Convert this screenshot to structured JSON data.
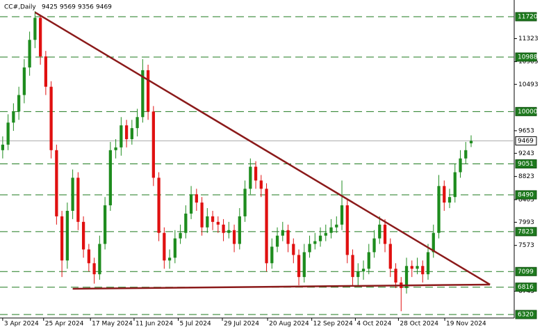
{
  "chart_data": {
    "type": "candlestick",
    "title": "CC#,Daily",
    "header_ohlc": [
      9425,
      9569,
      9356,
      9469
    ],
    "open": [
      9300,
      9400,
      9800,
      10000,
      10300,
      10800,
      11300,
      11700,
      11000,
      10450,
      9300,
      8100,
      7300,
      8200,
      8800,
      8000,
      7500,
      7250,
      7050,
      7600,
      8300,
      9300,
      9350,
      9750,
      9500,
      9700,
      9900,
      10750,
      10000,
      8800,
      7800,
      7300,
      7350,
      7700,
      7800,
      8150,
      8500,
      8350,
      7900,
      8100,
      8000,
      7950,
      7800,
      7850,
      7600,
      8100,
      8600,
      9000,
      8750,
      8600,
      7250,
      7550,
      7750,
      7850,
      7600,
      7400,
      7000,
      7450,
      7600,
      7650,
      7750,
      7800,
      7900,
      7950,
      8300,
      7400,
      7000,
      7100,
      7150,
      7450,
      7700,
      7950,
      7600,
      7150,
      6900,
      6800,
      7200,
      7150,
      7200,
      7050,
      7450,
      7800,
      8650,
      8350,
      8450,
      8900,
      9150,
      9425
    ],
    "high": [
      9550,
      9950,
      10150,
      10450,
      10950,
      11450,
      11820,
      11750,
      11100,
      10550,
      9400,
      8200,
      8350,
      8950,
      8900,
      8100,
      7600,
      7350,
      7750,
      8450,
      9450,
      9500,
      9900,
      9850,
      9850,
      10050,
      10950,
      10850,
      10100,
      8900,
      7900,
      7500,
      7850,
      7950,
      8300,
      8650,
      8600,
      8450,
      8250,
      8200,
      8100,
      8050,
      8000,
      7950,
      8250,
      8750,
      9150,
      9100,
      8850,
      8700,
      7700,
      7900,
      8000,
      7950,
      7700,
      7500,
      7600,
      7750,
      7800,
      7900,
      7950,
      8050,
      8100,
      8750,
      8400,
      7500,
      7250,
      7300,
      7600,
      7850,
      8100,
      8050,
      7700,
      7250,
      7000,
      7350,
      7300,
      7350,
      7300,
      7600,
      7950,
      8850,
      8750,
      8600,
      9050,
      9300,
      9450,
      9569
    ],
    "low": [
      9150,
      9300,
      9650,
      9850,
      10150,
      10650,
      11150,
      10850,
      10300,
      9150,
      7950,
      7000,
      7150,
      8050,
      7850,
      7350,
      7100,
      6880,
      6950,
      7500,
      8200,
      9150,
      9200,
      9350,
      9400,
      9550,
      9800,
      9850,
      8650,
      7650,
      7150,
      7150,
      7250,
      7600,
      7700,
      8050,
      8200,
      7750,
      7800,
      7850,
      7800,
      7650,
      7700,
      7450,
      7500,
      8000,
      8500,
      8600,
      8450,
      7100,
      7150,
      7450,
      7650,
      7450,
      7250,
      6850,
      6900,
      7350,
      7500,
      7550,
      7650,
      7700,
      7800,
      7850,
      7250,
      6830,
      6850,
      6950,
      7050,
      7350,
      7600,
      7450,
      7000,
      6800,
      6380,
      6700,
      7000,
      7050,
      6900,
      6950,
      7350,
      7700,
      8200,
      8250,
      8350,
      8800,
      9050,
      9356
    ],
    "close": [
      9400,
      9800,
      10000,
      10300,
      10800,
      11300,
      11700,
      11000,
      10450,
      9300,
      8100,
      7300,
      8200,
      8800,
      8000,
      7500,
      7250,
      7050,
      7600,
      8300,
      9300,
      9350,
      9750,
      9500,
      9700,
      9900,
      10750,
      10000,
      8800,
      7800,
      7300,
      7350,
      7700,
      7800,
      8150,
      8500,
      8350,
      7900,
      8100,
      8000,
      7950,
      7800,
      7850,
      7600,
      8100,
      8600,
      9000,
      8750,
      8600,
      7250,
      7550,
      7750,
      7850,
      7600,
      7400,
      7000,
      7450,
      7600,
      7650,
      7750,
      7800,
      7900,
      7950,
      8300,
      7400,
      7000,
      7100,
      7150,
      7450,
      7700,
      7950,
      7600,
      7150,
      6900,
      6800,
      7200,
      7150,
      7200,
      7050,
      7450,
      7800,
      8650,
      8350,
      8450,
      8900,
      9150,
      9300,
      9469
    ],
    "up_color": "#1e8c1e",
    "down_color": "#e01010",
    "xlim": [
      -0.5,
      95
    ],
    "xticks": [
      {
        "value": 0,
        "label": "3 Apr 2024"
      },
      {
        "value": 7.6,
        "label": "25 Apr 2024"
      },
      {
        "value": 16.3,
        "label": "17 May 2024"
      },
      {
        "value": 24.4,
        "label": "11 Jun 2024"
      },
      {
        "value": 32.6,
        "label": "5 Jul 2024"
      },
      {
        "value": 40.8,
        "label": "29 Jul 2024"
      },
      {
        "value": 49.2,
        "label": "20 Aug 2024"
      },
      {
        "value": 57.4,
        "label": "12 Sep 2024"
      },
      {
        "value": 65.5,
        "label": "4 Oct 2024"
      },
      {
        "value": 73.5,
        "label": "28 Oct 2024"
      },
      {
        "value": 82.1,
        "label": "19 Nov 2024"
      }
    ],
    "ylim": [
      6257,
      12023
    ],
    "yticks": [
      11323,
      10905,
      10493,
      9653,
      9243,
      8823,
      8403,
      7993,
      7573,
      6743
    ],
    "levels": [
      11720,
      10988,
      10000,
      9051,
      8490,
      7823,
      7099,
      6816,
      6320
    ],
    "level_color": "#1e7a1e",
    "last_price": 9469,
    "trendlines": [
      {
        "x": [
          6,
          90.5
        ],
        "y": [
          11800,
          6863
        ]
      },
      {
        "x": [
          13,
          90.5
        ],
        "y": [
          6787,
          6863
        ]
      }
    ],
    "trendline_color": "#8b1a1a"
  }
}
